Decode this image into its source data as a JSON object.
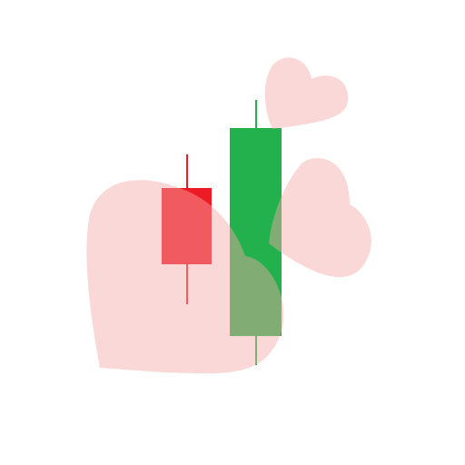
{
  "icon": {
    "name": "candlestick-hearts-icon",
    "colors": {
      "background": "#ffffff",
      "bearish": "#ed1c24",
      "bullish": "#22b14c",
      "heart": "#f7a8a8"
    },
    "candles": [
      {
        "direction": "bearish"
      },
      {
        "direction": "bullish"
      }
    ],
    "hearts": [
      {
        "size": "large"
      },
      {
        "size": "medium"
      },
      {
        "size": "small"
      }
    ]
  }
}
